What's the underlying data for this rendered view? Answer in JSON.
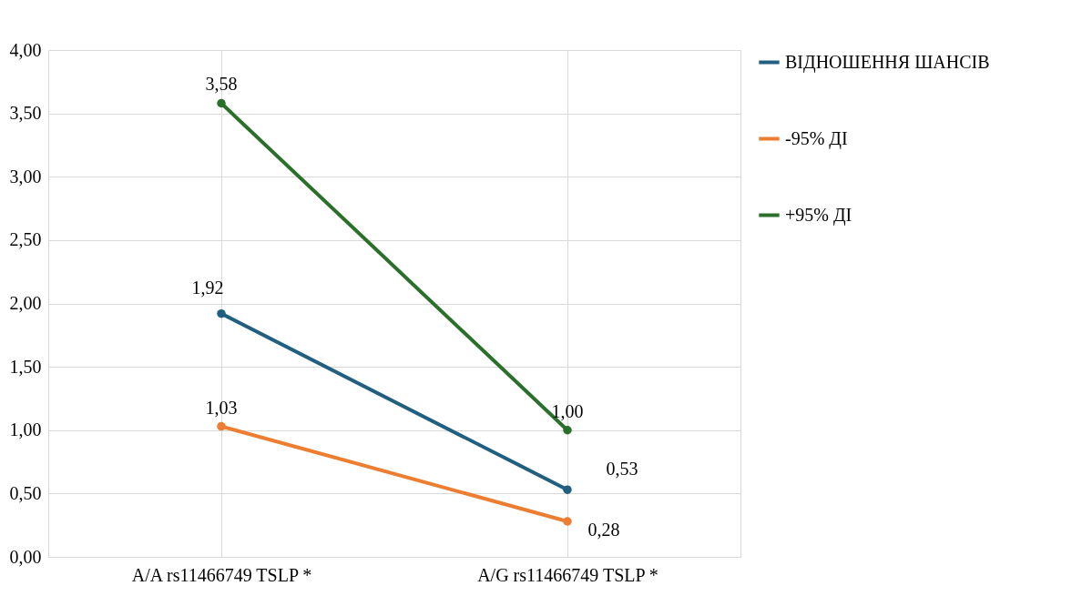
{
  "chart_data": {
    "type": "line",
    "categories": [
      "A/A rs11466749 TSLP *",
      "A/G rs11466749 TSLP *"
    ],
    "series": [
      {
        "name": "ВІДНОШЕННЯ ШАНСІВ",
        "color": "#215f81",
        "values": [
          1.92,
          0.53
        ],
        "value_labels": [
          "1,92",
          "0,53"
        ]
      },
      {
        "name": "-95%  ДІ",
        "color": "#ed7d31",
        "values": [
          1.03,
          0.28
        ],
        "value_labels": [
          "1,03",
          "0,28"
        ]
      },
      {
        "name": "+95% ДІ",
        "color": "#2a6f2a",
        "values": [
          3.58,
          1.0
        ],
        "value_labels": [
          "3,58",
          "1,00"
        ]
      }
    ],
    "ylim": [
      0,
      4
    ],
    "yticks": [
      {
        "value": 0,
        "label": "0,00"
      },
      {
        "value": 0.5,
        "label": "0,50"
      },
      {
        "value": 1,
        "label": "1,00"
      },
      {
        "value": 1.5,
        "label": "1,50"
      },
      {
        "value": 2,
        "label": "2,00"
      },
      {
        "value": 2.5,
        "label": "2,50"
      },
      {
        "value": 3,
        "label": "3,00"
      },
      {
        "value": 3.5,
        "label": "3,50"
      },
      {
        "value": 4,
        "label": "4,00"
      }
    ],
    "grid": true,
    "legend": "right",
    "marker": "circle",
    "line_style": "solid"
  }
}
